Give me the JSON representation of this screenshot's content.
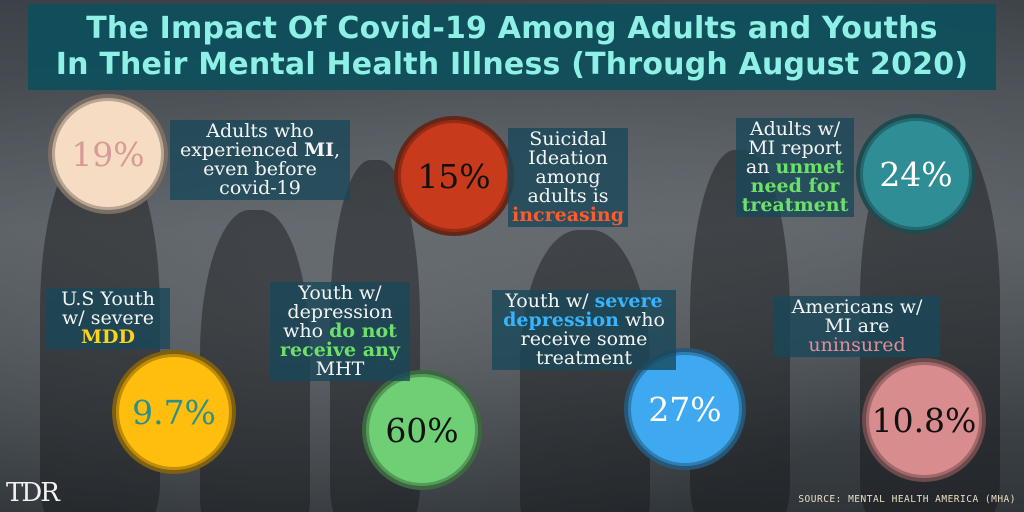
{
  "title": {
    "line1": "The Impact Of Covid-19 Among Adults and Youths",
    "line2": "In Their Mental Health Illness (Through August 2020)"
  },
  "stats": [
    {
      "value": "19%",
      "circle_color": "#f6dcc3",
      "value_color": "#d99a96",
      "label_lines": [
        [
          {
            "t": "Adults who"
          }
        ],
        [
          {
            "t": "experienced "
          },
          {
            "t": "MI",
            "hl": "white"
          },
          {
            "t": ","
          }
        ],
        [
          {
            "t": "even before"
          }
        ],
        [
          {
            "t": "covid-19"
          }
        ]
      ]
    },
    {
      "value": "15%",
      "circle_color": "#c73a1c",
      "value_color": "#111111",
      "label_lines": [
        [
          {
            "t": "Suicidal"
          }
        ],
        [
          {
            "t": "Ideation"
          }
        ],
        [
          {
            "t": "among"
          }
        ],
        [
          {
            "t": "adults  is"
          }
        ],
        [
          {
            "t": "increasing",
            "hl": "red"
          }
        ]
      ]
    },
    {
      "value": "24%",
      "circle_color": "#2f8d96",
      "value_color": "#ffffff",
      "label_lines": [
        [
          {
            "t": "Adults w/"
          }
        ],
        [
          {
            "t": "MI report"
          }
        ],
        [
          {
            "t": "an "
          },
          {
            "t": "unmet",
            "hl": "green"
          }
        ],
        [
          {
            "t": "need for",
            "hl": "green"
          }
        ],
        [
          {
            "t": "treatment",
            "hl": "green"
          }
        ]
      ]
    },
    {
      "value": "9.7%",
      "circle_color": "#ffbd0d",
      "value_color": "#2a8f8f",
      "label_lines": [
        [
          {
            "t": "U.S Youth"
          }
        ],
        [
          {
            "t": "w/ severe"
          }
        ],
        [
          {
            "t": "MDD",
            "hl": "yellow"
          }
        ]
      ]
    },
    {
      "value": "60%",
      "circle_color": "#6fcf74",
      "value_color": "#111111",
      "label_lines": [
        [
          {
            "t": "Youth  w/"
          }
        ],
        [
          {
            "t": "depression"
          }
        ],
        [
          {
            "t": "who "
          },
          {
            "t": "do not",
            "hl": "green"
          }
        ],
        [
          {
            "t": "receive any",
            "hl": "green"
          }
        ],
        [
          {
            "t": "MHT"
          }
        ]
      ]
    },
    {
      "value": "27%",
      "circle_color": "#3ea9f0",
      "value_color": "#ffffff",
      "label_lines": [
        [
          {
            "t": "Youth  w/ "
          },
          {
            "t": "severe",
            "hl": "blue"
          }
        ],
        [
          {
            "t": "depression",
            "hl": "blue"
          },
          {
            "t": " who"
          }
        ],
        [
          {
            "t": "receive some"
          }
        ],
        [
          {
            "t": "treatment"
          }
        ]
      ]
    },
    {
      "value": "10.8%",
      "circle_color": "#d98c8e",
      "value_color": "#111111",
      "label_lines": [
        [
          {
            "t": "Americans w/"
          }
        ],
        [
          {
            "t": "MI are"
          }
        ],
        [
          {
            "t": "uninsured",
            "hl": "pink"
          }
        ]
      ]
    }
  ],
  "logo": "TDR",
  "source": "SOURCE: MENTAL HEALTH AMERICA (MHA)"
}
